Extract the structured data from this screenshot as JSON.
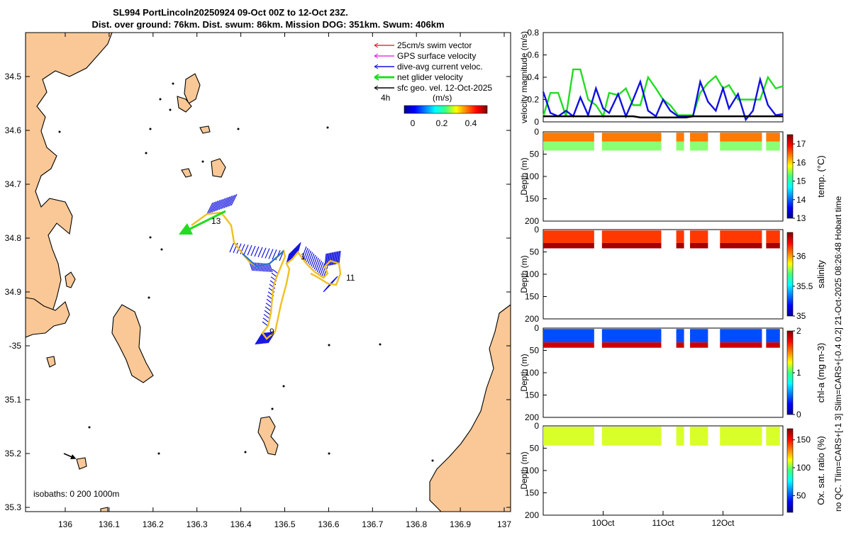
{
  "title": {
    "line1": "SL994 PortLincoln20250924 09-Oct 00Z to 12-Oct 23Z.",
    "line2": "Dist. over ground: 76km. Dist. swum: 86km. Mission DOG: 351km. Swum: 406km"
  },
  "map": {
    "legend": [
      {
        "label": "25cm/s swim vector",
        "color": "#e01010"
      },
      {
        "label": "GPS surface velocity",
        "color": "#e010e0"
      },
      {
        "label": "dive-avg current veloc.",
        "color": "#1010e0"
      },
      {
        "label": "net glider velocity",
        "color": "#20dd20"
      },
      {
        "label": "sfc geo. vel. 12-Oct-2025",
        "color": "#000000"
      }
    ],
    "interval_label": "4h",
    "colorbar_title": "(m/s)",
    "colorbar_ticks": [
      "0",
      "0.2",
      "0.4"
    ],
    "isobaths_label": "isobaths: 0   200  1000m",
    "lon_ticks": [
      "136",
      "136.1",
      "136.2",
      "136.3",
      "136.4",
      "136.5",
      "136.6",
      "136.7",
      "136.8",
      "136.9",
      "137"
    ],
    "lat_ticks": [
      "34.5",
      "34.6",
      "34.7",
      "34.8",
      "34.9",
      "-35",
      "35.1",
      "35.2",
      "35.3"
    ],
    "waypoint_labels": [
      "13",
      "1",
      "11",
      "9"
    ],
    "land_color": "#f9c896"
  },
  "side_label": "no QC. Tlim=CARS+[-1 3] Slim=CARS+[-0.4 0.2] 21-Oct-2025 08:26:48 Hobart time",
  "chart_data": [
    {
      "type": "line",
      "ylabel": "velocity magnitude (m/s)",
      "ylim": [
        0,
        0.8
      ],
      "yticks": [
        "0",
        "0.2",
        "0.4",
        "0.6",
        "0.8"
      ],
      "x_days": [
        0.0,
        0.12,
        0.25,
        0.38,
        0.5,
        0.62,
        0.75,
        0.88,
        1.0,
        1.1,
        1.25,
        1.38,
        1.5,
        1.62,
        1.75,
        1.88,
        2.0,
        2.12,
        2.25,
        2.38,
        2.5,
        2.62,
        2.75,
        2.88,
        3.0,
        3.1,
        3.25,
        3.38,
        3.5,
        3.62,
        3.75,
        3.88,
        4.0
      ],
      "series": [
        {
          "name": "net glider velocity",
          "color": "#20dd20",
          "values": [
            0.05,
            0.26,
            0.26,
            0.05,
            0.47,
            0.47,
            0.2,
            0.15,
            0.05,
            0.26,
            0.24,
            0.3,
            0.15,
            0.15,
            0.4,
            0.3,
            0.2,
            0.15,
            0.06,
            0.06,
            0.06,
            0.26,
            0.35,
            0.41,
            0.3,
            0.33,
            0.2,
            0.2,
            0.2,
            0.2,
            0.4,
            0.3,
            0.32
          ]
        },
        {
          "name": "dive-avg current veloc.",
          "color": "#1010e0",
          "values": [
            0.27,
            0.08,
            0.05,
            0.1,
            0.05,
            0.22,
            0.06,
            0.3,
            0.12,
            0.08,
            0.25,
            0.05,
            0.2,
            0.36,
            0.1,
            0.05,
            0.2,
            0.1,
            0.05,
            0.05,
            0.05,
            0.36,
            0.18,
            0.1,
            0.3,
            0.12,
            0.25,
            0.02,
            0.1,
            0.38,
            0.15,
            0.06,
            0.07
          ]
        },
        {
          "name": "sfc geo. vel.",
          "color": "#000000",
          "values": [
            0.05,
            0.05,
            0.05,
            0.05,
            0.05,
            0.05,
            0.05,
            0.05,
            0.05,
            0.05,
            0.05,
            0.05,
            0.05,
            0.04,
            0.04,
            0.04,
            0.04,
            0.04,
            0.04,
            0.04,
            0.05,
            0.05,
            0.05,
            0.05,
            0.05,
            0.05,
            0.05,
            0.05,
            0.05,
            0.05,
            0.05,
            0.05,
            0.05
          ]
        }
      ]
    },
    {
      "type": "heatmap",
      "ylabel": "Depth (m)",
      "ylim": [
        0,
        200
      ],
      "yticks": [
        "0",
        "50",
        "100",
        "150",
        "200"
      ],
      "colorbar_label": "temp. (°C)",
      "colorbar_range": [
        13,
        17.5
      ],
      "colorbar_ticks": [
        "13",
        "14",
        "15",
        "16",
        "17"
      ],
      "upper_value": 16.4,
      "lower_value": 15.3,
      "layer_depth_m": 22,
      "max_depth_m": 50
    },
    {
      "type": "heatmap",
      "ylabel": "Depth (m)",
      "ylim": [
        0,
        200
      ],
      "yticks": [
        "0",
        "50",
        "100",
        "150",
        "200"
      ],
      "colorbar_label": "salinity",
      "colorbar_range": [
        35,
        36.4
      ],
      "colorbar_ticks": [
        "35",
        "35.5",
        "36"
      ],
      "upper_value": 36.15,
      "lower_value": 36.35,
      "layer_depth_m": 30,
      "max_depth_m": 50
    },
    {
      "type": "heatmap",
      "ylabel": "Depth (m)",
      "ylim": [
        0,
        200
      ],
      "yticks": [
        "0",
        "50",
        "100",
        "150",
        "200"
      ],
      "colorbar_label": "chl-a (mg m-3)",
      "colorbar_range": [
        0,
        2
      ],
      "colorbar_ticks": [
        "0",
        "1",
        "2"
      ],
      "upper_value": 0.4,
      "lower_value": 1.85,
      "layer_depth_m": 32,
      "max_depth_m": 52
    },
    {
      "type": "heatmap",
      "ylabel": "Depth (m)",
      "ylim": [
        0,
        200
      ],
      "yticks": [
        "0",
        "50",
        "100",
        "150",
        "200"
      ],
      "colorbar_label": "Ox. sat. ratio (%)",
      "colorbar_range": [
        20,
        170
      ],
      "colorbar_ticks": [
        "50",
        "100",
        "150"
      ],
      "upper_value": 108,
      "lower_value": 108,
      "layer_depth_m": 30,
      "max_depth_m": 52
    }
  ],
  "time_axis": {
    "x_range_days": [
      0,
      4
    ],
    "ticks": [
      {
        "label": "10Oct",
        "day": 1
      },
      {
        "label": "11Oct",
        "day": 2
      },
      {
        "label": "12Oct",
        "day": 3
      }
    ],
    "data_segments_days": [
      [
        0.0,
        0.85
      ],
      [
        0.98,
        1.97
      ],
      [
        2.22,
        2.35
      ],
      [
        2.45,
        2.75
      ],
      [
        2.95,
        3.65
      ],
      [
        3.72,
        3.95
      ]
    ]
  }
}
